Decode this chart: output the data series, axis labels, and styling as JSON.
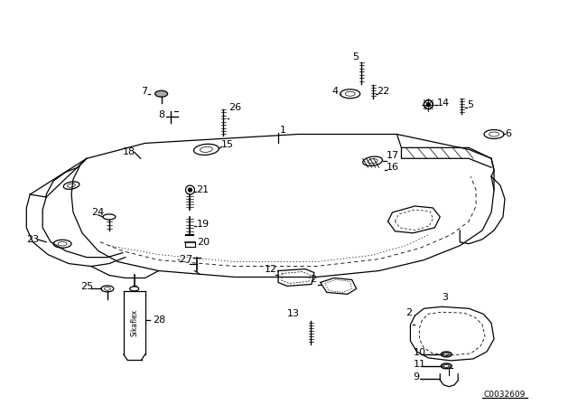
{
  "background_color": "#ffffff",
  "catalog_number": "C0032609",
  "label_sikaflex": "Sikaflex"
}
